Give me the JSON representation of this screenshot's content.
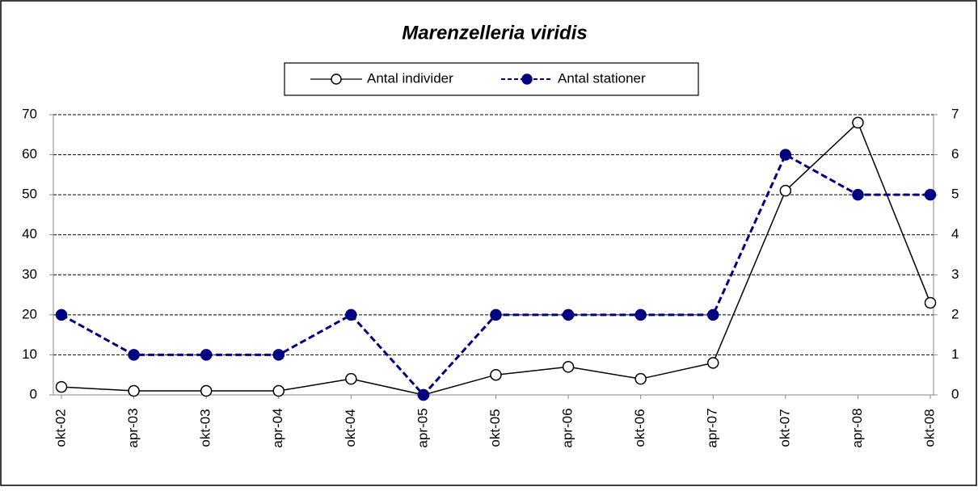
{
  "chart_data": {
    "type": "line",
    "title": "Marenzelleria viridis",
    "categories": [
      "okt-02",
      "apr-03",
      "okt-03",
      "apr-04",
      "okt-04",
      "apr-05",
      "okt-05",
      "apr-06",
      "okt-06",
      "apr-07",
      "okt-07",
      "apr-08",
      "okt-08"
    ],
    "series": [
      {
        "name": "Antal individer",
        "color": "#000000",
        "values": [
          2,
          1,
          1,
          1,
          4,
          0,
          5,
          7,
          4,
          8,
          51,
          68,
          23
        ]
      },
      {
        "name": "Antal stationer",
        "color": "#000080",
        "axis": "y2",
        "values": [
          2,
          1,
          1,
          1,
          2,
          0,
          2,
          2,
          2,
          2,
          6,
          5,
          5
        ]
      }
    ],
    "ylim": [
      0,
      70
    ],
    "yticks": [
      0,
      10,
      20,
      30,
      40,
      50,
      60,
      70
    ],
    "y2lim": [
      0,
      7
    ],
    "y2ticks": [
      0,
      1,
      2,
      3,
      4,
      5,
      6,
      7
    ],
    "grid": true,
    "legend": "top"
  }
}
